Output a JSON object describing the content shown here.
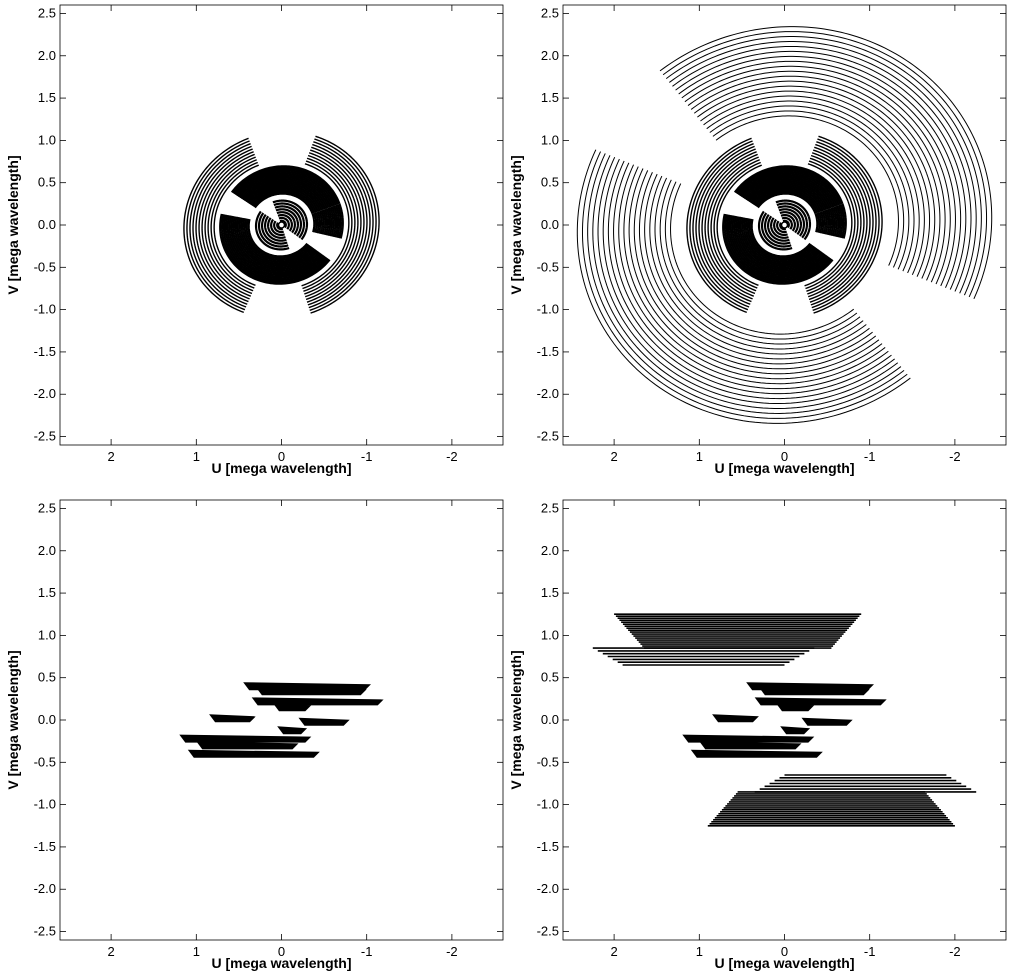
{
  "chart_data": [
    {
      "type": "scatter",
      "panel": "top-left",
      "xlabel": "U [mega wavelength]",
      "ylabel": "V [mega wavelength]",
      "xlim": [
        2.6,
        -2.6
      ],
      "ylim": [
        -2.6,
        2.6
      ],
      "xticks": [
        2,
        1,
        0,
        -1,
        -2
      ],
      "xtick_labels": [
        "2",
        "1",
        "0",
        "-1",
        "-2"
      ],
      "yticks": [
        2.5,
        2.0,
        1.5,
        1.0,
        0.5,
        0.0,
        -0.5,
        -1.0,
        -1.5,
        -2.0,
        -2.5
      ],
      "ytick_labels": [
        "2.5",
        "2.0",
        "1.5",
        "1.0",
        "0.5",
        "0.0",
        "-0.5",
        "-1.0",
        "-1.5",
        "-2.0",
        "-2.5"
      ],
      "grid": false,
      "coverage": {
        "pattern": "elliptical-tracks",
        "max_radius": 1.15,
        "extended": false
      }
    },
    {
      "type": "scatter",
      "panel": "top-right",
      "xlabel": "U [mega wavelength]",
      "ylabel": "V [mega wavelength]",
      "xlim": [
        2.6,
        -2.6
      ],
      "ylim": [
        -2.6,
        2.6
      ],
      "xticks": [
        2,
        1,
        0,
        -1,
        -2
      ],
      "xtick_labels": [
        "2",
        "1",
        "0",
        "-1",
        "-2"
      ],
      "yticks": [
        2.5,
        2.0,
        1.5,
        1.0,
        0.5,
        0.0,
        -0.5,
        -1.0,
        -1.5,
        -2.0,
        -2.5
      ],
      "ytick_labels": [
        "2.5",
        "2.0",
        "1.5",
        "1.0",
        "0.5",
        "0.0",
        "-0.5",
        "-1.0",
        "-1.5",
        "-2.0",
        "-2.5"
      ],
      "grid": false,
      "coverage": {
        "pattern": "elliptical-tracks",
        "max_radius": 2.4,
        "extended": true
      }
    },
    {
      "type": "scatter",
      "panel": "bottom-left",
      "xlabel": "U [mega wavelength]",
      "ylabel": "V [mega wavelength]",
      "xlim": [
        2.6,
        -2.6
      ],
      "ylim": [
        -2.6,
        2.6
      ],
      "xticks": [
        2,
        1,
        0,
        -1,
        -2
      ],
      "xtick_labels": [
        "2",
        "1",
        "0",
        "-1",
        "-2"
      ],
      "yticks": [
        2.5,
        2.0,
        1.5,
        1.0,
        0.5,
        0.0,
        -0.5,
        -1.0,
        -1.5,
        -2.0,
        -2.5
      ],
      "ytick_labels": [
        "2.5",
        "2.0",
        "1.5",
        "1.0",
        "0.5",
        "0.0",
        "-0.5",
        "-1.0",
        "-1.5",
        "-2.0",
        "-2.5"
      ],
      "grid": false,
      "coverage": {
        "pattern": "horizontal-bands",
        "bands": [
          {
            "v": 0.4,
            "u_from": 0.45,
            "u_to": -1.05
          },
          {
            "v": 0.34,
            "u_from": 0.3,
            "u_to": -1.0
          },
          {
            "v": 0.22,
            "u_from": 0.35,
            "u_to": -1.2
          },
          {
            "v": 0.15,
            "u_from": 0.1,
            "u_to": -0.35
          },
          {
            "v": 0.02,
            "u_from": 0.85,
            "u_to": 0.3
          },
          {
            "v": -0.02,
            "u_from": -0.2,
            "u_to": -0.8
          },
          {
            "v": -0.12,
            "u_from": 0.05,
            "u_to": -0.3
          },
          {
            "v": -0.22,
            "u_from": 1.2,
            "u_to": -0.35
          },
          {
            "v": -0.3,
            "u_from": 1.0,
            "u_to": -0.2
          },
          {
            "v": -0.4,
            "u_from": 1.1,
            "u_to": -0.45
          }
        ]
      }
    },
    {
      "type": "scatter",
      "panel": "bottom-right",
      "xlabel": "U [mega wavelength]",
      "ylabel": "V [mega wavelength]",
      "xlim": [
        2.6,
        -2.6
      ],
      "ylim": [
        -2.6,
        2.6
      ],
      "xticks": [
        2,
        1,
        0,
        -1,
        -2
      ],
      "xtick_labels": [
        "2",
        "1",
        "0",
        "-1",
        "-2"
      ],
      "yticks": [
        2.5,
        2.0,
        1.5,
        1.0,
        0.5,
        0.0,
        -0.5,
        -1.0,
        -1.5,
        -2.0,
        -2.5
      ],
      "ytick_labels": [
        "2.5",
        "2.0",
        "1.5",
        "1.0",
        "0.5",
        "0.0",
        "-0.5",
        "-1.0",
        "-1.5",
        "-2.0",
        "-2.5"
      ],
      "grid": false,
      "coverage": {
        "pattern": "horizontal-bands",
        "bands": [
          {
            "v": 0.4,
            "u_from": 0.45,
            "u_to": -1.05
          },
          {
            "v": 0.34,
            "u_from": 0.3,
            "u_to": -1.0
          },
          {
            "v": 0.22,
            "u_from": 0.35,
            "u_to": -1.2
          },
          {
            "v": 0.15,
            "u_from": 0.1,
            "u_to": -0.35
          },
          {
            "v": 0.02,
            "u_from": 0.85,
            "u_to": 0.3
          },
          {
            "v": -0.02,
            "u_from": -0.2,
            "u_to": -0.8
          },
          {
            "v": -0.12,
            "u_from": 0.05,
            "u_to": -0.3
          },
          {
            "v": -0.22,
            "u_from": 1.2,
            "u_to": -0.35
          },
          {
            "v": -0.3,
            "u_from": 1.0,
            "u_to": -0.2
          },
          {
            "v": -0.4,
            "u_from": 1.1,
            "u_to": -0.45
          }
        ],
        "outer_groups": [
          {
            "v_top": 1.25,
            "v_bottom": 0.85,
            "u_left": 2.0,
            "u_right": -0.9,
            "lines": 18
          },
          {
            "v_top": 0.85,
            "v_bottom": 0.65,
            "u_left": 2.25,
            "u_right": -0.35,
            "lines": 7
          },
          {
            "v_top": -0.65,
            "v_bottom": -0.85,
            "u_left": 0.35,
            "u_right": -2.25,
            "lines": 7
          },
          {
            "v_top": -0.85,
            "v_bottom": -1.25,
            "u_left": 0.9,
            "u_right": -2.0,
            "lines": 18
          }
        ]
      }
    }
  ]
}
